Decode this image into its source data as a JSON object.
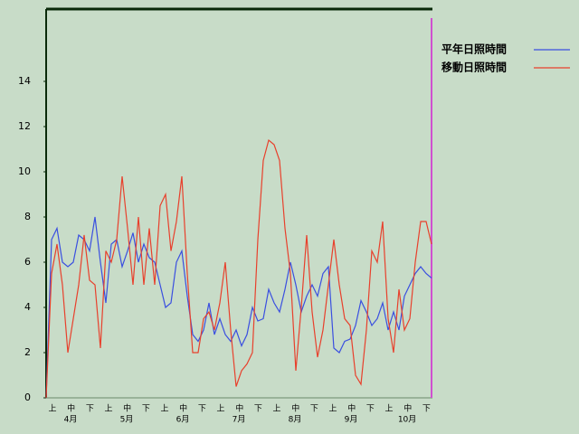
{
  "chart_data": {
    "type": "line",
    "dekads": [
      "上",
      "中",
      "下",
      "上",
      "中",
      "下",
      "上",
      "中",
      "下",
      "上",
      "中",
      "下",
      "上",
      "中",
      "下",
      "上",
      "中",
      "下",
      "上",
      "中",
      "下"
    ],
    "months": [
      "4月",
      "5月",
      "6月",
      "7月",
      "8月",
      "9月",
      "10月"
    ],
    "ylim": [
      0,
      17.2
    ],
    "yticks": [
      0,
      2,
      4,
      6,
      8,
      10,
      12,
      14
    ],
    "series": [
      {
        "name": "平年日照時間",
        "color": "#3a4fe0",
        "values": [
          0,
          7.0,
          7.5,
          6.0,
          5.8,
          6.0,
          7.2,
          7.0,
          6.5,
          8.0,
          6.0,
          4.2,
          6.8,
          7.0,
          5.8,
          6.5,
          7.3,
          6.0,
          6.8,
          6.2,
          6.0,
          5.0,
          4.0,
          4.2,
          6.0,
          6.5,
          4.5,
          2.8,
          2.5,
          3.0,
          4.2,
          2.8,
          3.5,
          2.8,
          2.5,
          3.0,
          2.3,
          2.8,
          4.0,
          3.4,
          3.5,
          4.8,
          4.2,
          3.8,
          4.8,
          6.0,
          5.0,
          3.8,
          4.5,
          5.0,
          4.5,
          5.5,
          5.8,
          2.2,
          2.0,
          2.5,
          2.6,
          3.2,
          4.3,
          3.8,
          3.2,
          3.5,
          4.2,
          3.0,
          3.8,
          3.0,
          4.5,
          5.0,
          5.5,
          5.8,
          5.5,
          5.3
        ]
      },
      {
        "name": "移動日照時間",
        "color": "#e8402c",
        "values": [
          0,
          5.5,
          6.8,
          5.0,
          2.0,
          3.5,
          5.0,
          7.2,
          5.2,
          5.0,
          2.2,
          6.5,
          6.0,
          7.0,
          9.8,
          7.5,
          5.0,
          8.0,
          5.0,
          7.5,
          5.0,
          8.5,
          9.0,
          6.5,
          7.8,
          9.8,
          5.5,
          2.0,
          2.0,
          3.5,
          3.8,
          3.0,
          4.2,
          6.0,
          3.0,
          0.5,
          1.2,
          1.5,
          2.0,
          7.0,
          10.5,
          11.4,
          11.2,
          10.5,
          7.5,
          5.5,
          1.2,
          4.0,
          7.2,
          3.8,
          1.8,
          3.0,
          5.0,
          7.0,
          5.0,
          3.5,
          3.2,
          1.0,
          0.6,
          3.0,
          6.5,
          6.0,
          7.8,
          3.5,
          2.0,
          4.8,
          3.0,
          3.5,
          6.0,
          7.8,
          7.8,
          6.8
        ]
      }
    ]
  }
}
